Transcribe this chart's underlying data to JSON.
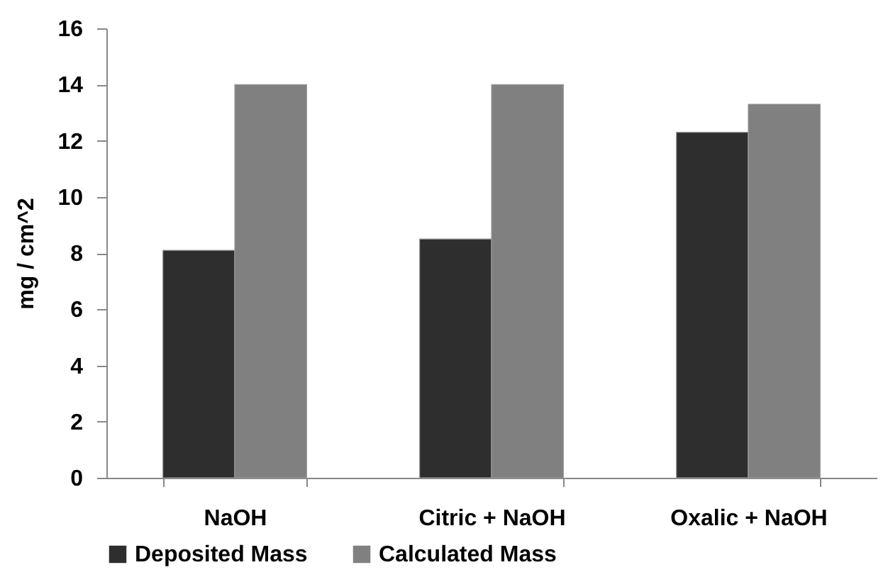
{
  "chart_data": {
    "type": "bar",
    "ylabel": "mg / cm^2",
    "categories": [
      "NaOH",
      "Citric + NaOH",
      "Oxalic + NaOH"
    ],
    "series": [
      {
        "name": "Deposited Mass",
        "color": "#2e2e2e",
        "values": [
          8.1,
          8.5,
          12.3
        ]
      },
      {
        "name": "Calculated Mass",
        "color": "#808080",
        "values": [
          14,
          14,
          13.3
        ]
      }
    ],
    "ylim": [
      0,
      16
    ],
    "yticks": [
      0,
      2,
      4,
      6,
      8,
      10,
      12,
      14,
      16
    ],
    "grid": false,
    "legend": "bottom"
  }
}
